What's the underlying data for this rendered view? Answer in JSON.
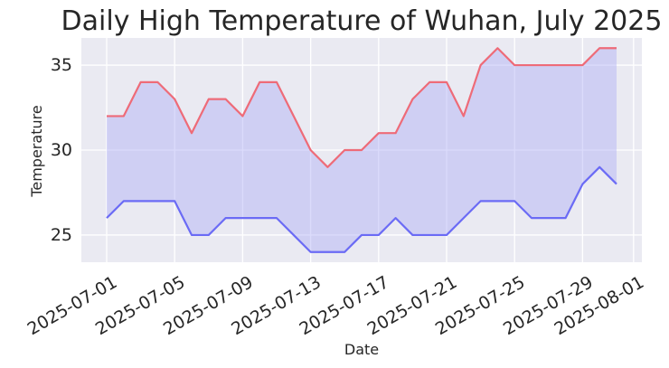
{
  "chart_data": {
    "type": "line",
    "title": "Daily High Temperature of Wuhan, July 2025",
    "xlabel": "Date",
    "ylabel": "Temperature",
    "x": [
      "2025-07-01",
      "2025-07-02",
      "2025-07-03",
      "2025-07-04",
      "2025-07-05",
      "2025-07-06",
      "2025-07-07",
      "2025-07-08",
      "2025-07-09",
      "2025-07-10",
      "2025-07-11",
      "2025-07-12",
      "2025-07-13",
      "2025-07-14",
      "2025-07-15",
      "2025-07-16",
      "2025-07-17",
      "2025-07-18",
      "2025-07-19",
      "2025-07-20",
      "2025-07-21",
      "2025-07-22",
      "2025-07-23",
      "2025-07-24",
      "2025-07-25",
      "2025-07-26",
      "2025-07-27",
      "2025-07-28",
      "2025-07-29",
      "2025-07-30",
      "2025-07-31"
    ],
    "series": [
      {
        "values": [
          32,
          32,
          34,
          34,
          33,
          31,
          33,
          33,
          32,
          34,
          34,
          32,
          30,
          29,
          30,
          30,
          31,
          31,
          33,
          34,
          34,
          32,
          35,
          36,
          35,
          35,
          35,
          35,
          35,
          36,
          36
        ],
        "color": "#ee6b78"
      },
      {
        "values": [
          26,
          27,
          27,
          27,
          27,
          25,
          25,
          26,
          26,
          26,
          26,
          25,
          24,
          24,
          24,
          25,
          25,
          26,
          25,
          25,
          25,
          26,
          27,
          27,
          27,
          26,
          26,
          26,
          28,
          29,
          28
        ],
        "color": "#6b6bf5"
      }
    ],
    "fill_color": "#aaaaf5",
    "x_ticks": [
      "2025-07-01",
      "2025-07-05",
      "2025-07-09",
      "2025-07-13",
      "2025-07-17",
      "2025-07-21",
      "2025-07-25",
      "2025-07-29",
      "2025-08-01"
    ],
    "y_ticks": [
      25,
      30,
      35
    ],
    "xlim": [
      "2024-06-29",
      "2025-08-02"
    ],
    "ylim": [
      23.4,
      36.6
    ],
    "grid": true,
    "background": "#eaeaf2"
  }
}
